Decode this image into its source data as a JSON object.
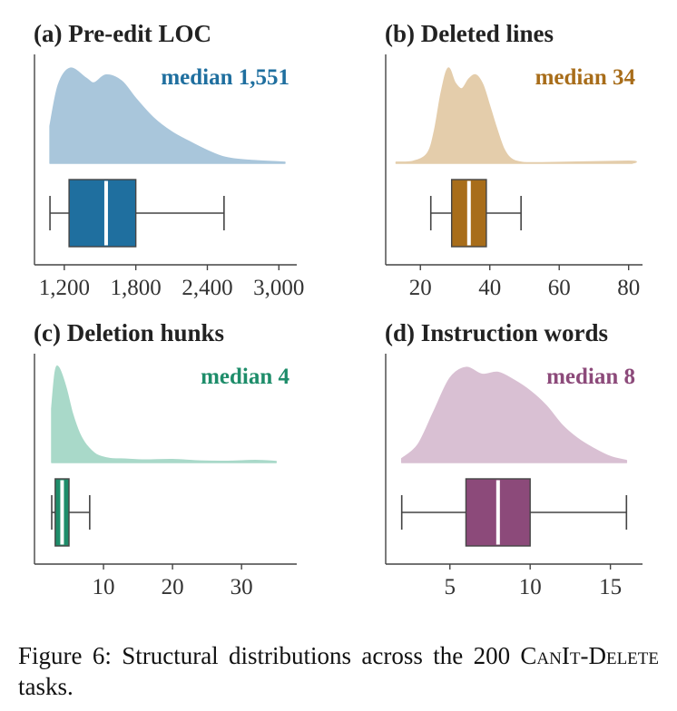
{
  "chart_data": [
    {
      "type": "violin_box",
      "title": "(a) Pre-edit LOC",
      "annotation": "median 1,551",
      "color": "#1f6f9f",
      "kde_color": "#a9c6db",
      "xlim": [
        950,
        3150
      ],
      "ticks": [
        1200,
        1800,
        2400,
        3000
      ],
      "tick_labels": [
        "1,200",
        "1,800",
        "2,400",
        "3,000"
      ],
      "box": {
        "whisker_low": 1080,
        "q1": 1240,
        "median": 1551,
        "q3": 1800,
        "whisker_high": 2540
      },
      "density": [
        [
          1080,
          0.38
        ],
        [
          1150,
          0.8
        ],
        [
          1250,
          0.97
        ],
        [
          1380,
          0.87
        ],
        [
          1450,
          0.82
        ],
        [
          1550,
          0.9
        ],
        [
          1680,
          0.84
        ],
        [
          1800,
          0.66
        ],
        [
          1950,
          0.46
        ],
        [
          2100,
          0.32
        ],
        [
          2250,
          0.22
        ],
        [
          2400,
          0.13
        ],
        [
          2550,
          0.06
        ],
        [
          2750,
          0.03
        ],
        [
          3050,
          0.01
        ]
      ]
    },
    {
      "type": "violin_box",
      "title": "(b) Deleted lines",
      "annotation": "median 34",
      "color": "#a86d1a",
      "kde_color": "#e4cdab",
      "xlim": [
        10,
        84
      ],
      "ticks": [
        20,
        40,
        60,
        80
      ],
      "tick_labels": [
        "20",
        "40",
        "60",
        "80"
      ],
      "box": {
        "whisker_low": 23,
        "q1": 29,
        "median": 34,
        "q3": 39,
        "whisker_high": 49
      },
      "density": [
        [
          13,
          0.01
        ],
        [
          18,
          0.02
        ],
        [
          22,
          0.1
        ],
        [
          24,
          0.32
        ],
        [
          26,
          0.72
        ],
        [
          28,
          0.97
        ],
        [
          30,
          0.82
        ],
        [
          32,
          0.76
        ],
        [
          34,
          0.86
        ],
        [
          36,
          0.9
        ],
        [
          38,
          0.8
        ],
        [
          40,
          0.58
        ],
        [
          42,
          0.35
        ],
        [
          44,
          0.15
        ],
        [
          46,
          0.05
        ],
        [
          49,
          0.01
        ],
        [
          55,
          0.005
        ],
        [
          80,
          0.02
        ],
        [
          81,
          0.0
        ]
      ]
    },
    {
      "type": "violin_box",
      "title": "(c) Deletion hunks",
      "annotation": "median 4",
      "color": "#1e8d6a",
      "kde_color": "#a9d9c9",
      "xlim": [
        0,
        38
      ],
      "ticks": [
        10,
        20,
        30
      ],
      "tick_labels": [
        "10",
        "20",
        "30"
      ],
      "box": {
        "whisker_low": 2.5,
        "q1": 3,
        "median": 4,
        "q3": 5,
        "whisker_high": 8
      },
      "density": [
        [
          2.5,
          0.55
        ],
        [
          3.0,
          0.92
        ],
        [
          3.5,
          0.97
        ],
        [
          4.5,
          0.78
        ],
        [
          5.5,
          0.5
        ],
        [
          6.5,
          0.3
        ],
        [
          7.5,
          0.18
        ],
        [
          9,
          0.08
        ],
        [
          11,
          0.04
        ],
        [
          13,
          0.035
        ],
        [
          16,
          0.025
        ],
        [
          20,
          0.03
        ],
        [
          24,
          0.015
        ],
        [
          28,
          0.012
        ],
        [
          32,
          0.02
        ],
        [
          35,
          0.01
        ]
      ]
    },
    {
      "type": "violin_box",
      "title": "(d) Instruction words",
      "annotation": "median 8",
      "color": "#8c4a7a",
      "kde_color": "#d9c0d3",
      "xlim": [
        1,
        17
      ],
      "ticks": [
        5,
        10,
        15
      ],
      "tick_labels": [
        "5",
        "10",
        "15"
      ],
      "box": {
        "whisker_low": 2,
        "q1": 6,
        "median": 8,
        "q3": 10,
        "whisker_high": 16
      },
      "density": [
        [
          2,
          0.04
        ],
        [
          3,
          0.18
        ],
        [
          4,
          0.52
        ],
        [
          5,
          0.86
        ],
        [
          6,
          0.97
        ],
        [
          7,
          0.9
        ],
        [
          8,
          0.92
        ],
        [
          9,
          0.84
        ],
        [
          10,
          0.73
        ],
        [
          11,
          0.58
        ],
        [
          12,
          0.38
        ],
        [
          13,
          0.24
        ],
        [
          14,
          0.14
        ],
        [
          15,
          0.06
        ],
        [
          16,
          0.02
        ]
      ]
    }
  ],
  "caption": {
    "prefix": "Figure 6: Structural distributions across the 200 ",
    "smallcaps": "CanIt-Delete",
    "suffix": " tasks."
  }
}
